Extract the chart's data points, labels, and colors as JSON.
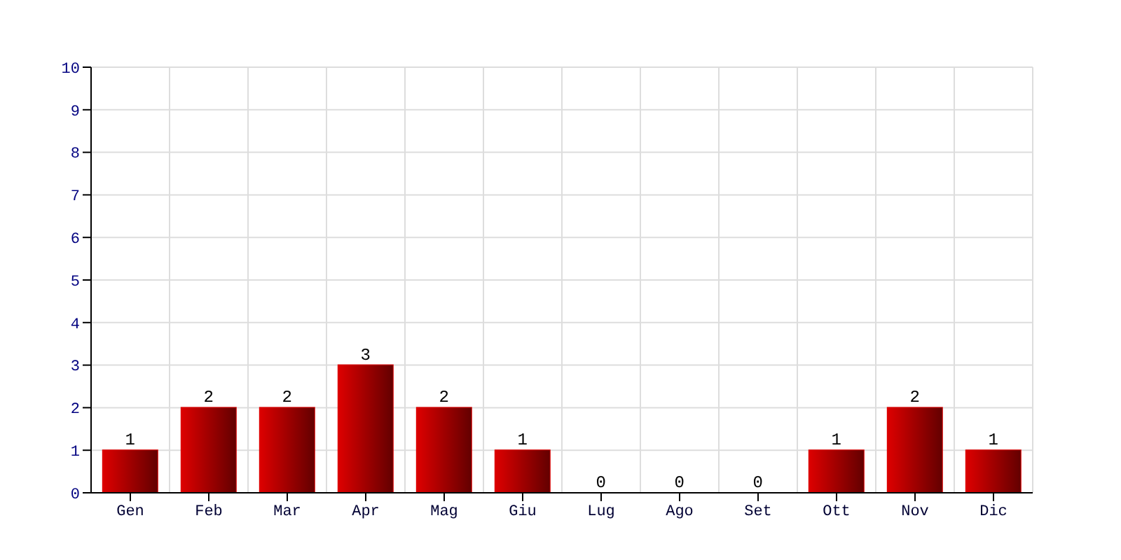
{
  "chart_data": {
    "type": "bar",
    "categories": [
      "Gen",
      "Feb",
      "Mar",
      "Apr",
      "Mag",
      "Giu",
      "Lug",
      "Ago",
      "Set",
      "Ott",
      "Nov",
      "Dic"
    ],
    "values": [
      1,
      2,
      2,
      3,
      2,
      1,
      0,
      0,
      0,
      1,
      2,
      1
    ],
    "color": "#dd0000",
    "ylim": [
      0,
      10
    ],
    "yticks": [
      0,
      1,
      2,
      3,
      4,
      5,
      6,
      7,
      8,
      9,
      10
    ],
    "grid": true,
    "data_labels": true
  }
}
